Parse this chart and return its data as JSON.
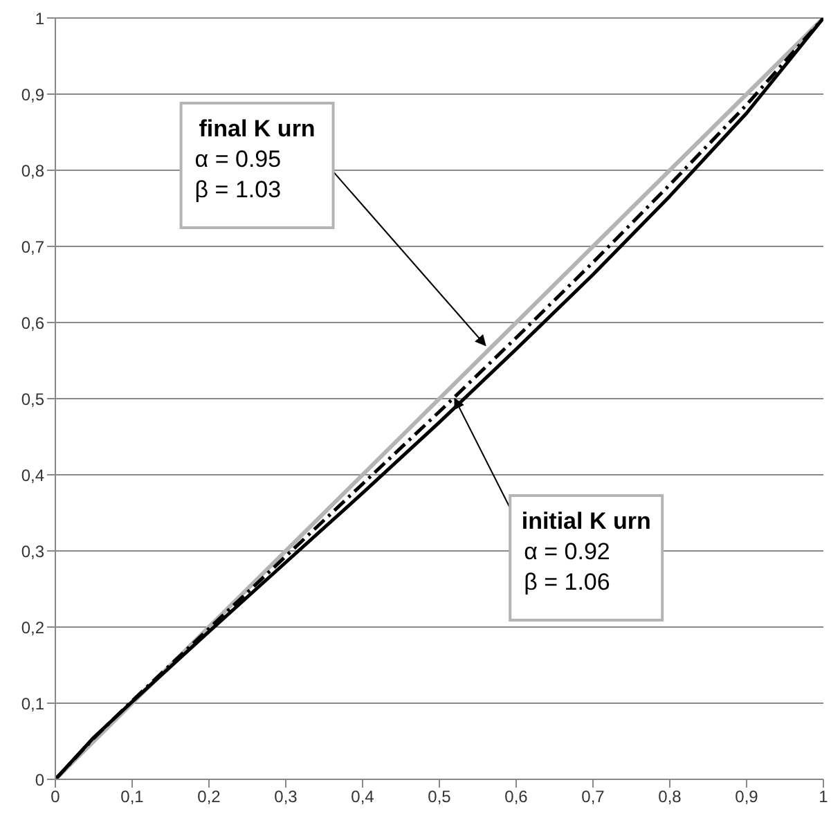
{
  "chart_data": {
    "type": "line",
    "x": [
      0,
      0.05,
      0.1,
      0.2,
      0.3,
      0.4,
      0.5,
      0.6,
      0.7,
      0.8,
      0.9,
      1
    ],
    "series": [
      {
        "color": "#b4b4b4",
        "x": [
          0,
          1
        ],
        "values": [
          0,
          1
        ],
        "line_style": "solid"
      },
      {
        "color": "#000000",
        "values": [
          0,
          0.054,
          0.103,
          0.198,
          0.293,
          0.388,
          0.483,
          0.58,
          0.679,
          0.781,
          0.886,
          1
        ],
        "line_style": "dashed"
      },
      {
        "color": "#000000",
        "values": [
          0,
          0.055,
          0.102,
          0.194,
          0.285,
          0.376,
          0.469,
          0.565,
          0.663,
          0.766,
          0.875,
          1
        ],
        "line_style": "solid"
      }
    ],
    "xlim": [
      0,
      1
    ],
    "ylim": [
      0,
      1
    ],
    "xticks": [
      0,
      {
        "value": 0.1,
        "label": "0,1"
      },
      {
        "value": 0.2,
        "label": "0,2"
      },
      {
        "value": 0.3,
        "label": "0,3"
      },
      {
        "value": 0.4,
        "label": "0,4"
      },
      {
        "value": 0.5,
        "label": "0,5"
      },
      {
        "value": 0.6,
        "label": "0,6"
      },
      {
        "value": 0.7,
        "label": "0,7"
      },
      {
        "value": 0.8,
        "label": "0,8"
      },
      {
        "value": 0.9,
        "label": "0,9"
      },
      1
    ],
    "yticks": [
      0,
      {
        "value": 0.1,
        "label": "0,1"
      },
      {
        "value": 0.2,
        "label": "0,2"
      },
      {
        "value": 0.3,
        "label": "0,3"
      },
      {
        "value": 0.4,
        "label": "0,4"
      },
      {
        "value": 0.5,
        "label": "0,5"
      },
      {
        "value": 0.6,
        "label": "0,6"
      },
      {
        "value": 0.7,
        "label": "0,7"
      },
      {
        "value": 0.8,
        "label": "0,8"
      },
      {
        "value": 0.9,
        "label": "0,9"
      },
      1
    ],
    "grid": "y",
    "marker": "none",
    "annotations": [
      {
        "text": "final K urn\nα = 0.95\nβ = 1.03",
        "x": 0.56,
        "y": 0.57
      },
      {
        "text": "initial K urn\nα = 0.92\nβ = 1.06",
        "x": 0.52,
        "y": 0.5
      }
    ]
  }
}
